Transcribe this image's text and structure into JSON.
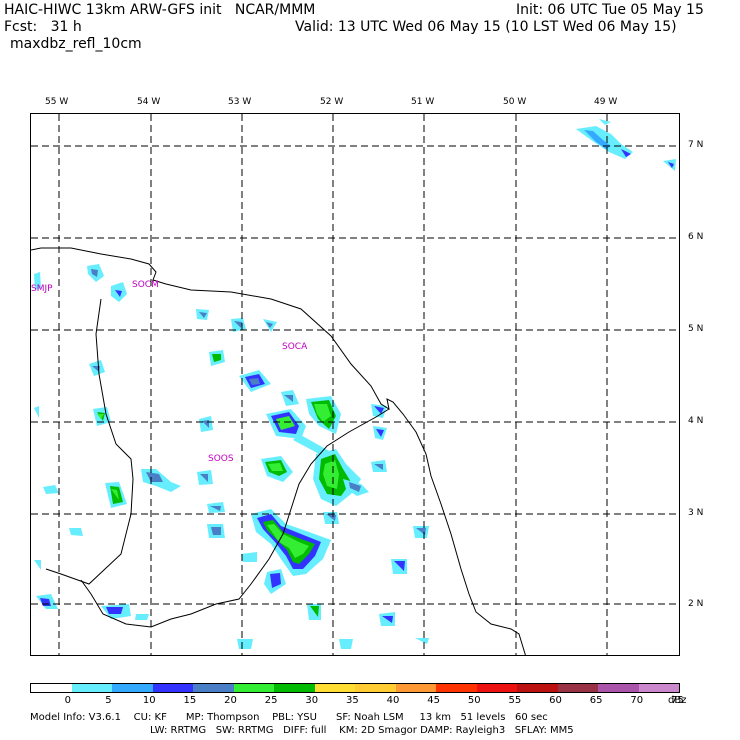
{
  "header": {
    "model_title": "HAIC-HIWC 13km ARW-GFS init   NCAR/MMM",
    "init": "Init: 06 UTC Tue 05 May 15",
    "fcst": "Fcst:   31 h",
    "valid": "Valid: 13 UTC Wed 06 May 15 (10 LST Wed 06 May 15)",
    "field": "maxdbz_refl_10cm"
  },
  "map": {
    "lon_labels": [
      "55 W",
      "54 W",
      "53 W",
      "52 W",
      "51 W",
      "50 W",
      "49 W"
    ],
    "lat_labels": [
      "7 N",
      "6 N",
      "5 N",
      "4 N",
      "3 N",
      "2 N"
    ],
    "stations": [
      "SMJP",
      "SOCM",
      "SOCA",
      "SOOS"
    ],
    "grid_line_style": "dashed",
    "coast_color": "#000000"
  },
  "colorbar": {
    "levels": [
      "0",
      "5",
      "10",
      "15",
      "20",
      "25",
      "30",
      "35",
      "40",
      "45",
      "50",
      "55",
      "60",
      "65",
      "70",
      "75"
    ],
    "unit": "dBz",
    "colors": [
      "#ffffff",
      "#66eeff",
      "#33aaff",
      "#3333ff",
      "#4a7fc8",
      "#33ee33",
      "#00bb00",
      "#ffdd33",
      "#ffcc33",
      "#ff9933",
      "#ff3300",
      "#ee1111",
      "#bb1111",
      "#993344",
      "#aa55aa",
      "#cc88cc"
    ]
  },
  "footer": {
    "line1": "Model Info: V3.6.1    CU: KF      MP: Thompson    PBL: YSU      SF: Noah LSM     13 km   51 levels   60 sec",
    "line2": "LW: RRTMG   SW: RRTMG   DIFF: full    KM: 2D Smagor DAMP: Rayleigh3   SFLAY: MM5"
  }
}
